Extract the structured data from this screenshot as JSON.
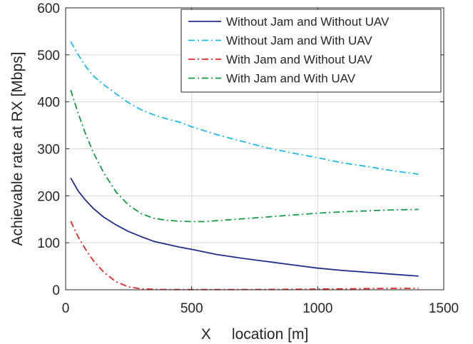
{
  "chart_data": {
    "type": "line",
    "xlabel": "X     location [m]",
    "ylabel": "Achievable rate at RX [Mbps]",
    "xlim": [
      0,
      1500
    ],
    "ylim": [
      0,
      600
    ],
    "xticks": [
      0,
      500,
      1000,
      1500
    ],
    "yticks": [
      0,
      100,
      200,
      300,
      400,
      500,
      600
    ],
    "grid": true,
    "legend_position": "top-right",
    "series": [
      {
        "name": "Without Jam and Without UAV",
        "color": "#1f2f8c",
        "dash": "solid",
        "x": [
          20,
          50,
          80,
          110,
          150,
          200,
          250,
          300,
          350,
          400,
          450,
          500,
          600,
          700,
          800,
          900,
          1000,
          1100,
          1200,
          1300,
          1400
        ],
        "y": [
          238,
          210,
          190,
          173,
          155,
          138,
          124,
          113,
          103,
          97,
          91,
          86,
          75,
          67,
          60,
          53,
          46,
          41,
          37,
          33,
          29
        ]
      },
      {
        "name": "Without Jam and With UAV",
        "color": "#1fb8e6",
        "dash": "dashdot",
        "x": [
          20,
          50,
          80,
          110,
          150,
          200,
          250,
          300,
          350,
          400,
          450,
          500,
          600,
          700,
          800,
          900,
          1000,
          1100,
          1200,
          1300,
          1400
        ],
        "y": [
          528,
          500,
          475,
          455,
          437,
          417,
          398,
          383,
          372,
          364,
          357,
          347,
          330,
          316,
          302,
          291,
          281,
          270,
          262,
          253,
          246
        ]
      },
      {
        "name": "With Jam and Without UAV",
        "color": "#e02828",
        "dash": "dashdot",
        "x": [
          20,
          50,
          80,
          110,
          150,
          200,
          250,
          300,
          350,
          400,
          500,
          700,
          900,
          1100,
          1300,
          1400
        ],
        "y": [
          146,
          112,
          85,
          62,
          38,
          17,
          6,
          2,
          1,
          0.5,
          0.5,
          0.5,
          1,
          2,
          3,
          3
        ]
      },
      {
        "name": "With Jam and With UAV",
        "color": "#169a46",
        "dash": "dashdot",
        "x": [
          20,
          50,
          80,
          110,
          150,
          200,
          250,
          300,
          350,
          400,
          450,
          500,
          550,
          600,
          700,
          800,
          900,
          1000,
          1100,
          1200,
          1300,
          1400
        ],
        "y": [
          425,
          375,
          330,
          292,
          250,
          208,
          180,
          162,
          152,
          148,
          146,
          145,
          145,
          147,
          151,
          155,
          159,
          163,
          166,
          168,
          170,
          171
        ]
      }
    ]
  }
}
